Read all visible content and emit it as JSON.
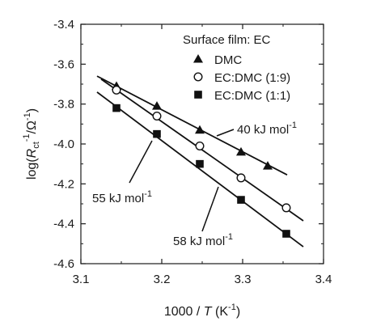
{
  "chart_data": {
    "type": "scatter",
    "xlabel": {
      "pre": "1000 / ",
      "var": "T",
      "unit": " (K",
      "sup": "-1",
      "close": ")"
    },
    "ylabel": {
      "pre": "log(",
      "var": "R",
      "sub": "ct",
      "sup1": "-1",
      "mid": "/Ω",
      "sup2": "-1",
      "close": ")"
    },
    "xlim": [
      3.1,
      3.4
    ],
    "ylim": [
      -4.6,
      -3.4
    ],
    "xticks": [
      3.1,
      3.2,
      3.3,
      3.4
    ],
    "xtick_labels": [
      "3.1",
      "3.2",
      "3.3",
      "3.4"
    ],
    "yticks": [
      -4.6,
      -4.4,
      -4.2,
      -4.0,
      -3.8,
      -3.6,
      -3.4
    ],
    "ytick_labels": [
      "-4.6",
      "-4.4",
      "-4.2",
      "-4.0",
      "-3.8",
      "-3.6",
      "-3.4"
    ],
    "grid": false,
    "legend": {
      "title": "Surface film: EC",
      "placement": "top-right"
    },
    "series": [
      {
        "name": "DMC",
        "marker": "triangle",
        "points": [
          [
            3.144,
            -3.71
          ],
          [
            3.194,
            -3.81
          ],
          [
            3.247,
            -3.93
          ],
          [
            3.298,
            -4.04
          ],
          [
            3.331,
            -4.11
          ]
        ],
        "fit": [
          [
            3.12,
            -3.66
          ],
          [
            3.355,
            -4.155
          ]
        ],
        "annotation": {
          "text": "40 kJ mol",
          "sup": "-1"
        }
      },
      {
        "name": "EC:DMC (1:9)",
        "marker": "circle-open",
        "points": [
          [
            3.144,
            -3.73
          ],
          [
            3.194,
            -3.86
          ],
          [
            3.247,
            -4.01
          ],
          [
            3.298,
            -4.17
          ],
          [
            3.354,
            -4.32
          ]
        ],
        "fit": [
          [
            3.125,
            -3.675
          ],
          [
            3.375,
            -4.385
          ]
        ],
        "annotation": {
          "text": "55 kJ mol",
          "sup": "-1"
        }
      },
      {
        "name": "EC:DMC (1:1)",
        "marker": "square",
        "points": [
          [
            3.144,
            -3.82
          ],
          [
            3.194,
            -3.95
          ],
          [
            3.247,
            -4.1
          ],
          [
            3.298,
            -4.28
          ],
          [
            3.354,
            -4.45
          ]
        ],
        "fit": [
          [
            3.12,
            -3.74
          ],
          [
            3.375,
            -4.515
          ]
        ],
        "annotation": {
          "text": "58 kJ mol",
          "sup": "-1"
        }
      }
    ]
  }
}
